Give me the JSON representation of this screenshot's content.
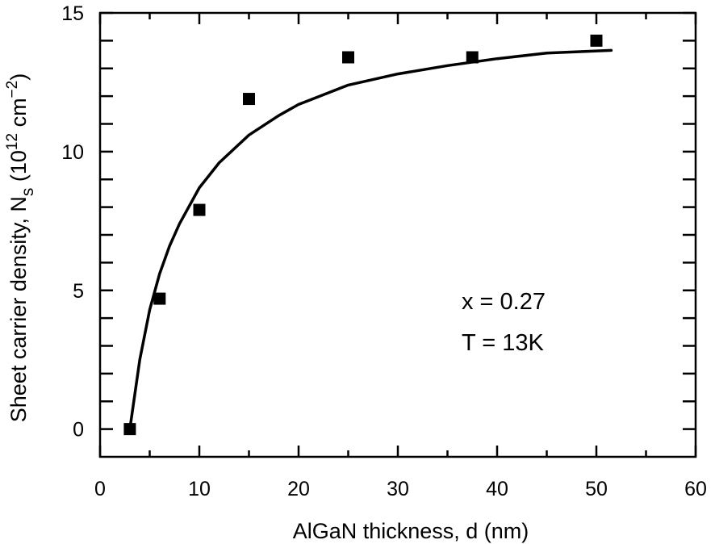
{
  "chart_data": {
    "type": "scatter",
    "xlabel": "AlGaN thickness, d (nm)",
    "ylabel": {
      "main": "Sheet carrier density, N",
      "subscript": "s",
      "unit_open": " (10",
      "unit_exp": "12",
      "unit_mid": " cm",
      "unit_exp2": "−2",
      "unit_close": ")"
    },
    "xlim": [
      0,
      60
    ],
    "ylim": [
      -1,
      15
    ],
    "xticks": [
      0,
      10,
      20,
      30,
      40,
      50,
      60
    ],
    "yticks": [
      0,
      5,
      10,
      15
    ],
    "x_minor_step": 5,
    "y_minor_step": 1,
    "grid": false,
    "series": [
      {
        "kind": "markers",
        "marker": "square",
        "x": [
          3,
          6,
          10,
          15,
          25,
          37.5,
          50
        ],
        "y": [
          0,
          4.7,
          7.9,
          11.9,
          13.4,
          13.4,
          14.0
        ]
      },
      {
        "kind": "fit-line",
        "x": [
          3,
          4,
          5,
          6,
          7,
          8,
          10,
          12,
          15,
          18,
          20,
          25,
          30,
          35,
          40,
          45,
          51.5
        ],
        "y": [
          0,
          2.5,
          4.3,
          5.6,
          6.6,
          7.4,
          8.7,
          9.6,
          10.6,
          11.3,
          11.7,
          12.4,
          12.8,
          13.1,
          13.35,
          13.55,
          13.65
        ]
      }
    ],
    "annotations": [
      "x = 0.27",
      "T = 13K"
    ]
  }
}
